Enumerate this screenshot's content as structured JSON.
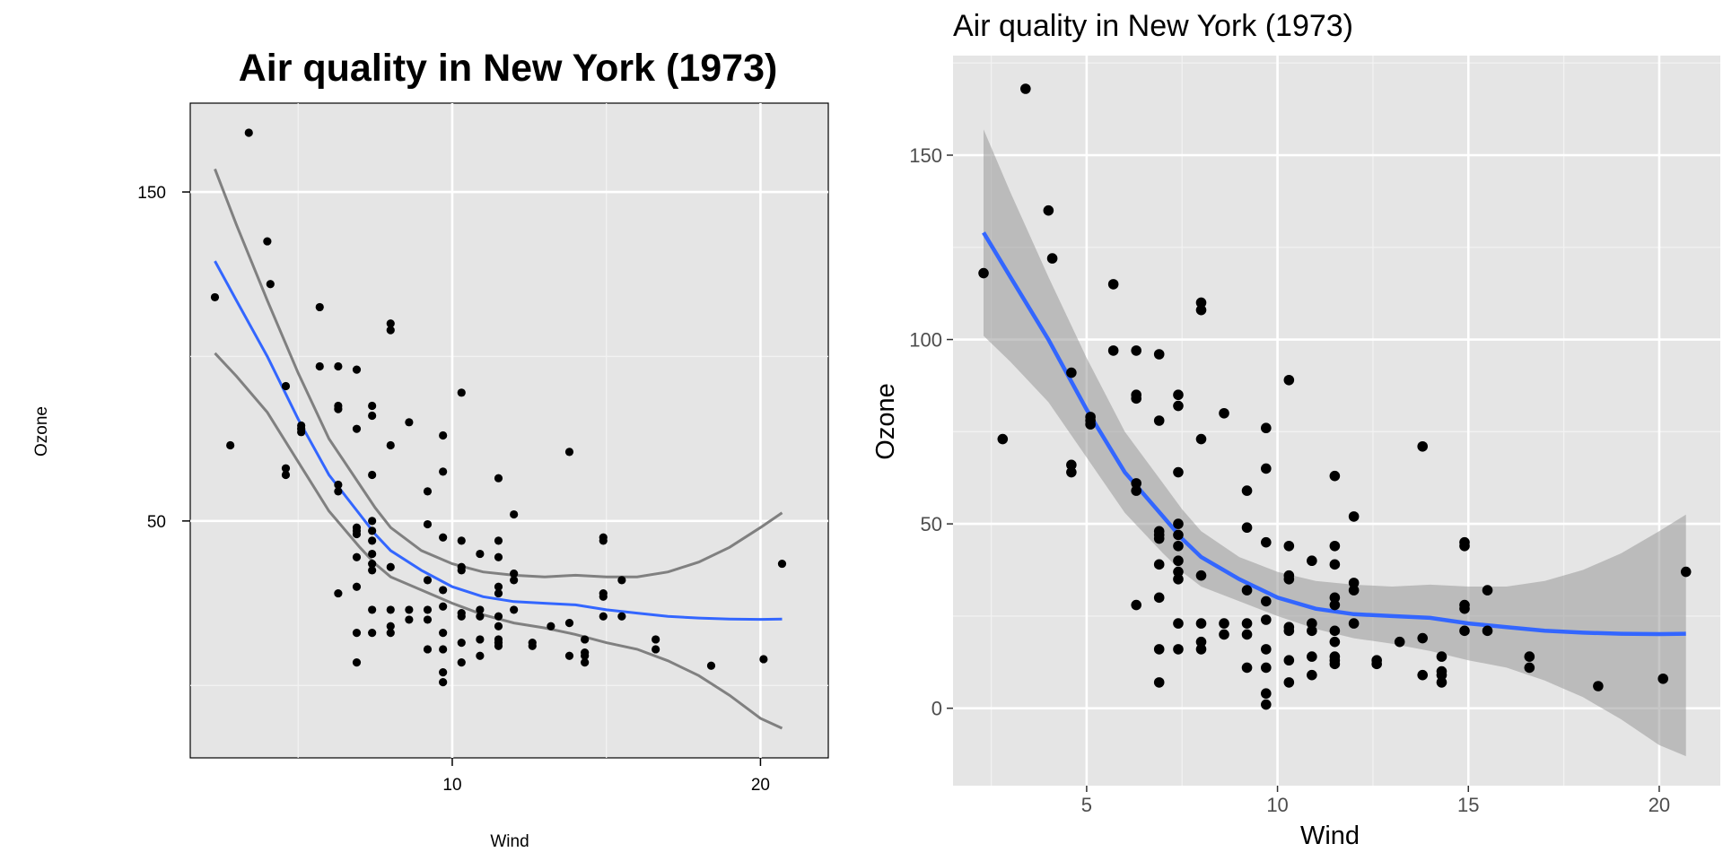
{
  "chart_data": [
    {
      "type": "scatter",
      "title": "Air quality in New York (1973)",
      "xlabel": "Wind",
      "ylabel": "Ozone",
      "xlim": [
        1.5,
        22.2
      ],
      "ylim": [
        -22,
        177
      ],
      "xticks": [
        10,
        20
      ],
      "yticks": [
        50,
        150
      ],
      "grid": true,
      "points": [
        [
          2.3,
          118
        ],
        [
          2.8,
          73
        ],
        [
          3.4,
          168
        ],
        [
          4.0,
          135
        ],
        [
          4.1,
          122
        ],
        [
          4.6,
          91
        ],
        [
          4.6,
          66
        ],
        [
          4.6,
          64
        ],
        [
          5.1,
          79
        ],
        [
          5.1,
          77
        ],
        [
          5.1,
          78
        ],
        [
          5.7,
          115
        ],
        [
          5.7,
          97
        ],
        [
          6.3,
          97
        ],
        [
          6.3,
          85
        ],
        [
          6.3,
          84
        ],
        [
          6.3,
          61
        ],
        [
          6.3,
          59
        ],
        [
          6.3,
          28
        ],
        [
          6.9,
          96
        ],
        [
          6.9,
          78
        ],
        [
          6.9,
          48
        ],
        [
          6.9,
          47
        ],
        [
          6.9,
          46
        ],
        [
          6.9,
          39
        ],
        [
          6.9,
          30
        ],
        [
          6.9,
          16
        ],
        [
          6.9,
          7
        ],
        [
          7.4,
          85
        ],
        [
          7.4,
          82
        ],
        [
          7.4,
          64
        ],
        [
          7.4,
          50
        ],
        [
          7.4,
          47
        ],
        [
          7.4,
          44
        ],
        [
          7.4,
          40
        ],
        [
          7.4,
          37
        ],
        [
          7.4,
          35
        ],
        [
          7.4,
          23
        ],
        [
          7.4,
          16
        ],
        [
          8.0,
          110
        ],
        [
          8.0,
          108
        ],
        [
          8.0,
          73
        ],
        [
          8.0,
          36
        ],
        [
          8.0,
          23
        ],
        [
          8.0,
          18
        ],
        [
          8.0,
          16
        ],
        [
          8.6,
          80
        ],
        [
          8.6,
          23
        ],
        [
          8.6,
          20
        ],
        [
          9.2,
          59
        ],
        [
          9.2,
          49
        ],
        [
          9.2,
          32
        ],
        [
          9.2,
          23
        ],
        [
          9.2,
          20
        ],
        [
          9.2,
          11
        ],
        [
          9.7,
          76
        ],
        [
          9.7,
          65
        ],
        [
          9.7,
          45
        ],
        [
          9.7,
          29
        ],
        [
          9.7,
          24
        ],
        [
          9.7,
          16
        ],
        [
          9.7,
          11
        ],
        [
          9.7,
          4
        ],
        [
          9.7,
          1
        ],
        [
          10.3,
          89
        ],
        [
          10.3,
          44
        ],
        [
          10.3,
          36
        ],
        [
          10.3,
          35
        ],
        [
          10.3,
          22
        ],
        [
          10.3,
          21
        ],
        [
          10.3,
          13
        ],
        [
          10.3,
          7
        ],
        [
          10.9,
          40
        ],
        [
          10.9,
          23
        ],
        [
          10.9,
          21
        ],
        [
          10.9,
          14
        ],
        [
          10.9,
          9
        ],
        [
          11.5,
          63
        ],
        [
          11.5,
          44
        ],
        [
          11.5,
          39
        ],
        [
          11.5,
          30
        ],
        [
          11.5,
          28
        ],
        [
          11.5,
          21
        ],
        [
          11.5,
          18
        ],
        [
          11.5,
          14
        ],
        [
          11.5,
          13
        ],
        [
          11.5,
          12
        ],
        [
          12.0,
          52
        ],
        [
          12.0,
          34
        ],
        [
          12.0,
          32
        ],
        [
          12.0,
          23
        ],
        [
          12.6,
          13
        ],
        [
          12.6,
          12
        ],
        [
          13.2,
          18
        ],
        [
          13.8,
          71
        ],
        [
          13.8,
          19
        ],
        [
          13.8,
          9
        ],
        [
          14.3,
          14
        ],
        [
          14.3,
          10
        ],
        [
          14.3,
          9
        ],
        [
          14.3,
          7
        ],
        [
          14.9,
          45
        ],
        [
          14.9,
          44
        ],
        [
          14.9,
          28
        ],
        [
          14.9,
          27
        ],
        [
          14.9,
          21
        ],
        [
          15.5,
          32
        ],
        [
          15.5,
          21
        ],
        [
          16.6,
          14
        ],
        [
          16.6,
          11
        ],
        [
          18.4,
          6
        ],
        [
          20.1,
          8
        ],
        [
          20.7,
          37
        ]
      ],
      "smooth": {
        "label": "loess",
        "color": "#3366ff",
        "ci_color": "#808080",
        "x": [
          2.3,
          3,
          4,
          5,
          6,
          7,
          7.5,
          8,
          9,
          10,
          11,
          12,
          13,
          14,
          15,
          16,
          17,
          18,
          19,
          20,
          20.7
        ],
        "y": [
          129,
          117,
          100,
          81,
          64,
          52,
          46,
          41,
          35,
          30,
          27,
          25.5,
          25,
          24.5,
          23,
          22,
          21,
          20.5,
          20.2,
          20.1,
          20.2
        ],
        "upper": [
          157,
          140,
          117,
          95,
          75,
          61,
          54,
          48,
          41,
          37,
          34.5,
          33.5,
          33,
          33.5,
          33,
          33,
          34.5,
          37.5,
          42,
          48,
          52.5
        ],
        "lower": [
          101,
          94,
          83,
          68,
          53,
          42,
          37,
          33,
          29,
          25,
          21.5,
          19,
          17.5,
          15.5,
          13,
          11,
          7.5,
          3,
          -3,
          -10,
          -13
        ]
      }
    },
    {
      "type": "scatter",
      "title": "Air quality in New York (1973)",
      "xlabel": "Wind",
      "ylabel": "Ozone",
      "xlim": [
        1.5,
        21.6
      ],
      "ylim": [
        -21,
        177
      ],
      "xticks": [
        5,
        10,
        15,
        20
      ],
      "yticks": [
        0,
        50,
        100,
        150
      ],
      "grid": true,
      "points_ref": 0,
      "smooth": {
        "ref": 0,
        "band": true
      }
    }
  ]
}
